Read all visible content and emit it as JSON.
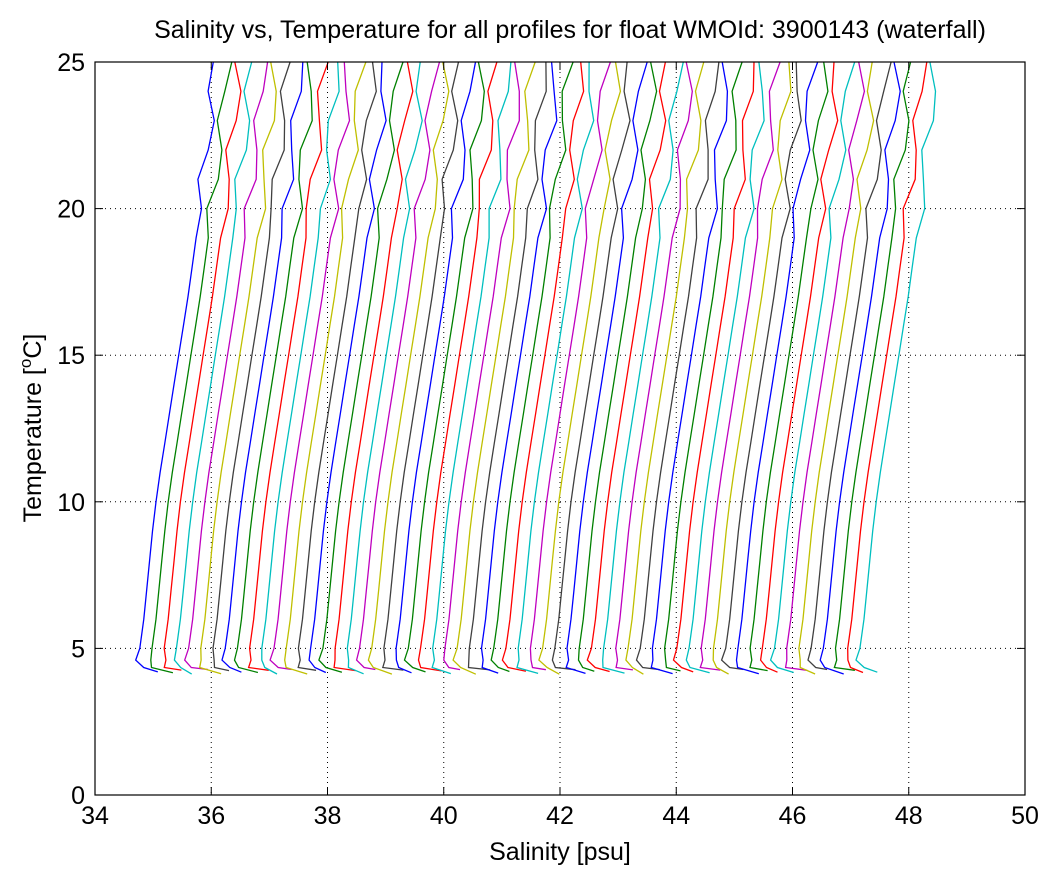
{
  "chart_data": {
    "type": "line",
    "title": "Salinity vs, Temperature for all profiles for float WMOId: 3900143 (waterfall)",
    "xlabel": "Salinity [psu]",
    "ylabel_main": "Temperature [",
    "ylabel_sup": "o",
    "ylabel_end": "C]",
    "xlim": [
      34,
      50
    ],
    "ylim": [
      0,
      25
    ],
    "xticks": [
      "34",
      "36",
      "38",
      "40",
      "42",
      "44",
      "46",
      "48",
      "50"
    ],
    "yticks": [
      "0",
      "5",
      "10",
      "15",
      "20",
      "25"
    ],
    "grid": true,
    "waterfall": {
      "profile_count": 60,
      "first_offset_psu": 35.2,
      "offset_step_psu": 0.21,
      "colors": [
        "#0000ff",
        "#008000",
        "#ff0000",
        "#00bfbf",
        "#bf00bf",
        "#bfbf00",
        "#404040"
      ]
    },
    "base_profile": [
      {
        "temperature": 4.2,
        "salinity_delta": -0.12
      },
      {
        "temperature": 4.35,
        "salinity_delta": -0.4
      },
      {
        "temperature": 4.6,
        "salinity_delta": -0.45
      },
      {
        "temperature": 5.0,
        "salinity_delta": -0.43
      },
      {
        "temperature": 6.0,
        "salinity_delta": -0.36
      },
      {
        "temperature": 7.0,
        "salinity_delta": -0.31
      },
      {
        "temperature": 8.0,
        "salinity_delta": -0.26
      },
      {
        "temperature": 9.0,
        "salinity_delta": -0.21
      },
      {
        "temperature": 10.0,
        "salinity_delta": -0.15
      },
      {
        "temperature": 11.0,
        "salinity_delta": -0.08
      },
      {
        "temperature": 12.0,
        "salinity_delta": 0.0
      },
      {
        "temperature": 13.0,
        "salinity_delta": 0.08
      },
      {
        "temperature": 14.0,
        "salinity_delta": 0.16
      },
      {
        "temperature": 15.0,
        "salinity_delta": 0.24
      },
      {
        "temperature": 16.0,
        "salinity_delta": 0.32
      },
      {
        "temperature": 17.0,
        "salinity_delta": 0.4
      },
      {
        "temperature": 18.0,
        "salinity_delta": 0.47
      },
      {
        "temperature": 19.0,
        "salinity_delta": 0.54
      },
      {
        "temperature": 20.0,
        "salinity_delta": 0.6
      },
      {
        "temperature": 21.0,
        "salinity_delta": 0.66
      },
      {
        "temperature": 22.0,
        "salinity_delta": 0.72
      },
      {
        "temperature": 23.0,
        "salinity_delta": 0.78
      },
      {
        "temperature": 24.0,
        "salinity_delta": 0.82
      },
      {
        "temperature": 25.0,
        "salinity_delta": 0.86
      }
    ]
  }
}
